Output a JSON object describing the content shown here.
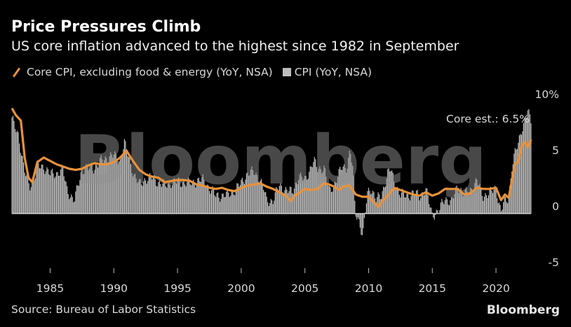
{
  "header": {
    "title": "Price Pressures Climb",
    "subtitle": "US core inflation advanced to the highest since 1982 in September"
  },
  "legend": {
    "core_label": "Core CPI, excluding food & energy (YoY, NSA)",
    "cpi_label": "CPI (YoY, NSA)"
  },
  "footer": {
    "source": "Source: Bureau of Labor Statistics",
    "brand": "Bloomberg"
  },
  "watermark": "Bloomberg",
  "colors": {
    "core": "#e9923a",
    "cpi": "#bdbdbd",
    "background": "#000000"
  },
  "chart_data": {
    "type": "bar",
    "annotation": "Core est.: 6.5%",
    "ylim": [
      -5,
      10
    ],
    "yticks": [
      -5,
      0,
      5,
      10
    ],
    "ytick_labels": [
      "-5",
      "0",
      "5",
      "10%"
    ],
    "xlim": [
      1982.0,
      2022.75
    ],
    "xticks": [
      1985,
      1990,
      1995,
      2000,
      2005,
      2010,
      2015,
      2020
    ],
    "xtick_labels": [
      "1985",
      "1990",
      "1995",
      "2000",
      "2005",
      "2010",
      "2015",
      "2020"
    ],
    "series": [
      {
        "name": "CPI (YoY, NSA)",
        "type": "bar",
        "points": [
          [
            1982.0,
            8.4
          ],
          [
            1982.5,
            7.1
          ],
          [
            1982.8,
            5.0
          ],
          [
            1983.0,
            3.7
          ],
          [
            1983.4,
            2.5
          ],
          [
            1983.8,
            3.3
          ],
          [
            1984.0,
            4.2
          ],
          [
            1984.5,
            4.2
          ],
          [
            1985.0,
            3.5
          ],
          [
            1985.5,
            3.6
          ],
          [
            1986.0,
            3.9
          ],
          [
            1986.3,
            2.3
          ],
          [
            1986.6,
            1.6
          ],
          [
            1986.9,
            1.1
          ],
          [
            1987.2,
            2.6
          ],
          [
            1987.5,
            3.9
          ],
          [
            1988.0,
            4.0
          ],
          [
            1988.5,
            4.1
          ],
          [
            1989.0,
            4.7
          ],
          [
            1989.5,
            5.0
          ],
          [
            1990.0,
            5.2
          ],
          [
            1990.5,
            4.7
          ],
          [
            1990.83,
            6.3
          ],
          [
            1991.2,
            4.9
          ],
          [
            1991.6,
            3.4
          ],
          [
            1992.0,
            2.6
          ],
          [
            1992.5,
            3.1
          ],
          [
            1993.0,
            3.2
          ],
          [
            1993.5,
            2.8
          ],
          [
            1994.0,
            2.5
          ],
          [
            1994.5,
            2.8
          ],
          [
            1995.0,
            2.8
          ],
          [
            1995.5,
            2.8
          ],
          [
            1996.0,
            2.7
          ],
          [
            1996.5,
            2.9
          ],
          [
            1997.0,
            3.0
          ],
          [
            1997.5,
            2.3
          ],
          [
            1998.0,
            1.6
          ],
          [
            1998.5,
            1.6
          ],
          [
            1999.0,
            1.7
          ],
          [
            1999.5,
            2.1
          ],
          [
            2000.0,
            2.7
          ],
          [
            2000.5,
            3.6
          ],
          [
            2001.0,
            3.7
          ],
          [
            2001.5,
            3.0
          ],
          [
            2001.8,
            2.1
          ],
          [
            2002.0,
            1.1
          ],
          [
            2002.5,
            1.2
          ],
          [
            2003.0,
            2.5
          ],
          [
            2003.5,
            2.1
          ],
          [
            2004.0,
            1.9
          ],
          [
            2004.5,
            3.3
          ],
          [
            2005.0,
            3.0
          ],
          [
            2005.7,
            4.7
          ],
          [
            2006.0,
            4.0
          ],
          [
            2006.5,
            4.1
          ],
          [
            2006.9,
            2.0
          ],
          [
            2007.3,
            2.6
          ],
          [
            2007.9,
            4.1
          ],
          [
            2008.3,
            4.2
          ],
          [
            2008.55,
            5.6
          ],
          [
            2008.8,
            3.7
          ],
          [
            2008.95,
            0.1
          ],
          [
            2009.2,
            -0.4
          ],
          [
            2009.55,
            -2.1
          ],
          [
            2009.9,
            1.8
          ],
          [
            2010.2,
            2.3
          ],
          [
            2010.6,
            1.2
          ],
          [
            2011.0,
            1.6
          ],
          [
            2011.5,
            3.6
          ],
          [
            2011.75,
            3.9
          ],
          [
            2012.0,
            2.9
          ],
          [
            2012.5,
            1.7
          ],
          [
            2013.0,
            1.6
          ],
          [
            2013.5,
            1.8
          ],
          [
            2014.0,
            1.6
          ],
          [
            2014.5,
            2.1
          ],
          [
            2015.0,
            -0.1
          ],
          [
            2015.5,
            0.2
          ],
          [
            2016.0,
            1.4
          ],
          [
            2016.5,
            1.0
          ],
          [
            2017.0,
            2.5
          ],
          [
            2017.5,
            1.7
          ],
          [
            2018.0,
            2.1
          ],
          [
            2018.5,
            2.9
          ],
          [
            2019.0,
            1.6
          ],
          [
            2019.5,
            1.8
          ],
          [
            2020.0,
            2.3
          ],
          [
            2020.4,
            0.1
          ],
          [
            2020.6,
            1.0
          ],
          [
            2021.0,
            1.4
          ],
          [
            2021.25,
            4.2
          ],
          [
            2021.5,
            5.4
          ],
          [
            2021.75,
            6.2
          ],
          [
            2022.0,
            7.5
          ],
          [
            2022.3,
            8.5
          ],
          [
            2022.5,
            9.1
          ],
          [
            2022.75,
            8.2
          ]
        ]
      },
      {
        "name": "Core CPI, excluding food & energy (YoY, NSA)",
        "type": "line",
        "points": [
          [
            1982.0,
            9.4
          ],
          [
            1982.3,
            8.8
          ],
          [
            1982.7,
            8.3
          ],
          [
            1983.0,
            5.0
          ],
          [
            1983.3,
            3.2
          ],
          [
            1983.6,
            2.8
          ],
          [
            1984.0,
            4.6
          ],
          [
            1984.5,
            5.0
          ],
          [
            1985.0,
            4.7
          ],
          [
            1985.5,
            4.4
          ],
          [
            1986.0,
            4.2
          ],
          [
            1986.5,
            4.0
          ],
          [
            1987.0,
            3.9
          ],
          [
            1987.5,
            4.0
          ],
          [
            1988.0,
            4.3
          ],
          [
            1988.5,
            4.5
          ],
          [
            1989.0,
            4.4
          ],
          [
            1989.5,
            4.4
          ],
          [
            1990.0,
            4.6
          ],
          [
            1990.5,
            5.0
          ],
          [
            1991.0,
            5.6
          ],
          [
            1991.5,
            4.7
          ],
          [
            1992.0,
            3.9
          ],
          [
            1992.5,
            3.5
          ],
          [
            1993.0,
            3.3
          ],
          [
            1993.5,
            3.2
          ],
          [
            1994.0,
            2.8
          ],
          [
            1994.5,
            2.9
          ],
          [
            1995.0,
            3.0
          ],
          [
            1995.5,
            3.0
          ],
          [
            1996.0,
            2.9
          ],
          [
            1996.5,
            2.6
          ],
          [
            1997.0,
            2.5
          ],
          [
            1997.5,
            2.3
          ],
          [
            1998.0,
            2.2
          ],
          [
            1998.5,
            2.3
          ],
          [
            1999.0,
            2.1
          ],
          [
            1999.5,
            2.0
          ],
          [
            2000.0,
            2.3
          ],
          [
            2000.5,
            2.5
          ],
          [
            2001.0,
            2.6
          ],
          [
            2001.5,
            2.7
          ],
          [
            2002.0,
            2.4
          ],
          [
            2002.5,
            2.2
          ],
          [
            2003.0,
            1.9
          ],
          [
            2003.5,
            1.6
          ],
          [
            2003.9,
            1.1
          ],
          [
            2004.2,
            1.6
          ],
          [
            2004.5,
            1.8
          ],
          [
            2005.0,
            2.2
          ],
          [
            2005.5,
            2.1
          ],
          [
            2006.0,
            2.2
          ],
          [
            2006.5,
            2.7
          ],
          [
            2006.9,
            2.6
          ],
          [
            2007.3,
            2.4
          ],
          [
            2007.7,
            2.1
          ],
          [
            2008.0,
            2.4
          ],
          [
            2008.5,
            2.5
          ],
          [
            2009.0,
            1.7
          ],
          [
            2009.5,
            1.5
          ],
          [
            2010.0,
            1.5
          ],
          [
            2010.5,
            0.9
          ],
          [
            2010.8,
            0.6
          ],
          [
            2011.0,
            1.0
          ],
          [
            2011.5,
            1.6
          ],
          [
            2012.0,
            2.3
          ],
          [
            2012.5,
            2.1
          ],
          [
            2013.0,
            1.9
          ],
          [
            2013.5,
            1.7
          ],
          [
            2014.0,
            1.6
          ],
          [
            2014.5,
            1.9
          ],
          [
            2015.0,
            1.6
          ],
          [
            2015.5,
            1.8
          ],
          [
            2016.0,
            2.2
          ],
          [
            2016.5,
            2.2
          ],
          [
            2017.0,
            2.2
          ],
          [
            2017.5,
            1.7
          ],
          [
            2018.0,
            1.8
          ],
          [
            2018.5,
            2.3
          ],
          [
            2019.0,
            2.2
          ],
          [
            2019.5,
            2.2
          ],
          [
            2020.0,
            2.3
          ],
          [
            2020.4,
            1.2
          ],
          [
            2020.7,
            1.7
          ],
          [
            2021.0,
            1.4
          ],
          [
            2021.25,
            3.0
          ],
          [
            2021.5,
            4.5
          ],
          [
            2021.75,
            4.6
          ],
          [
            2022.0,
            6.0
          ],
          [
            2022.25,
            6.4
          ],
          [
            2022.5,
            5.9
          ],
          [
            2022.75,
            6.6
          ]
        ]
      }
    ]
  }
}
